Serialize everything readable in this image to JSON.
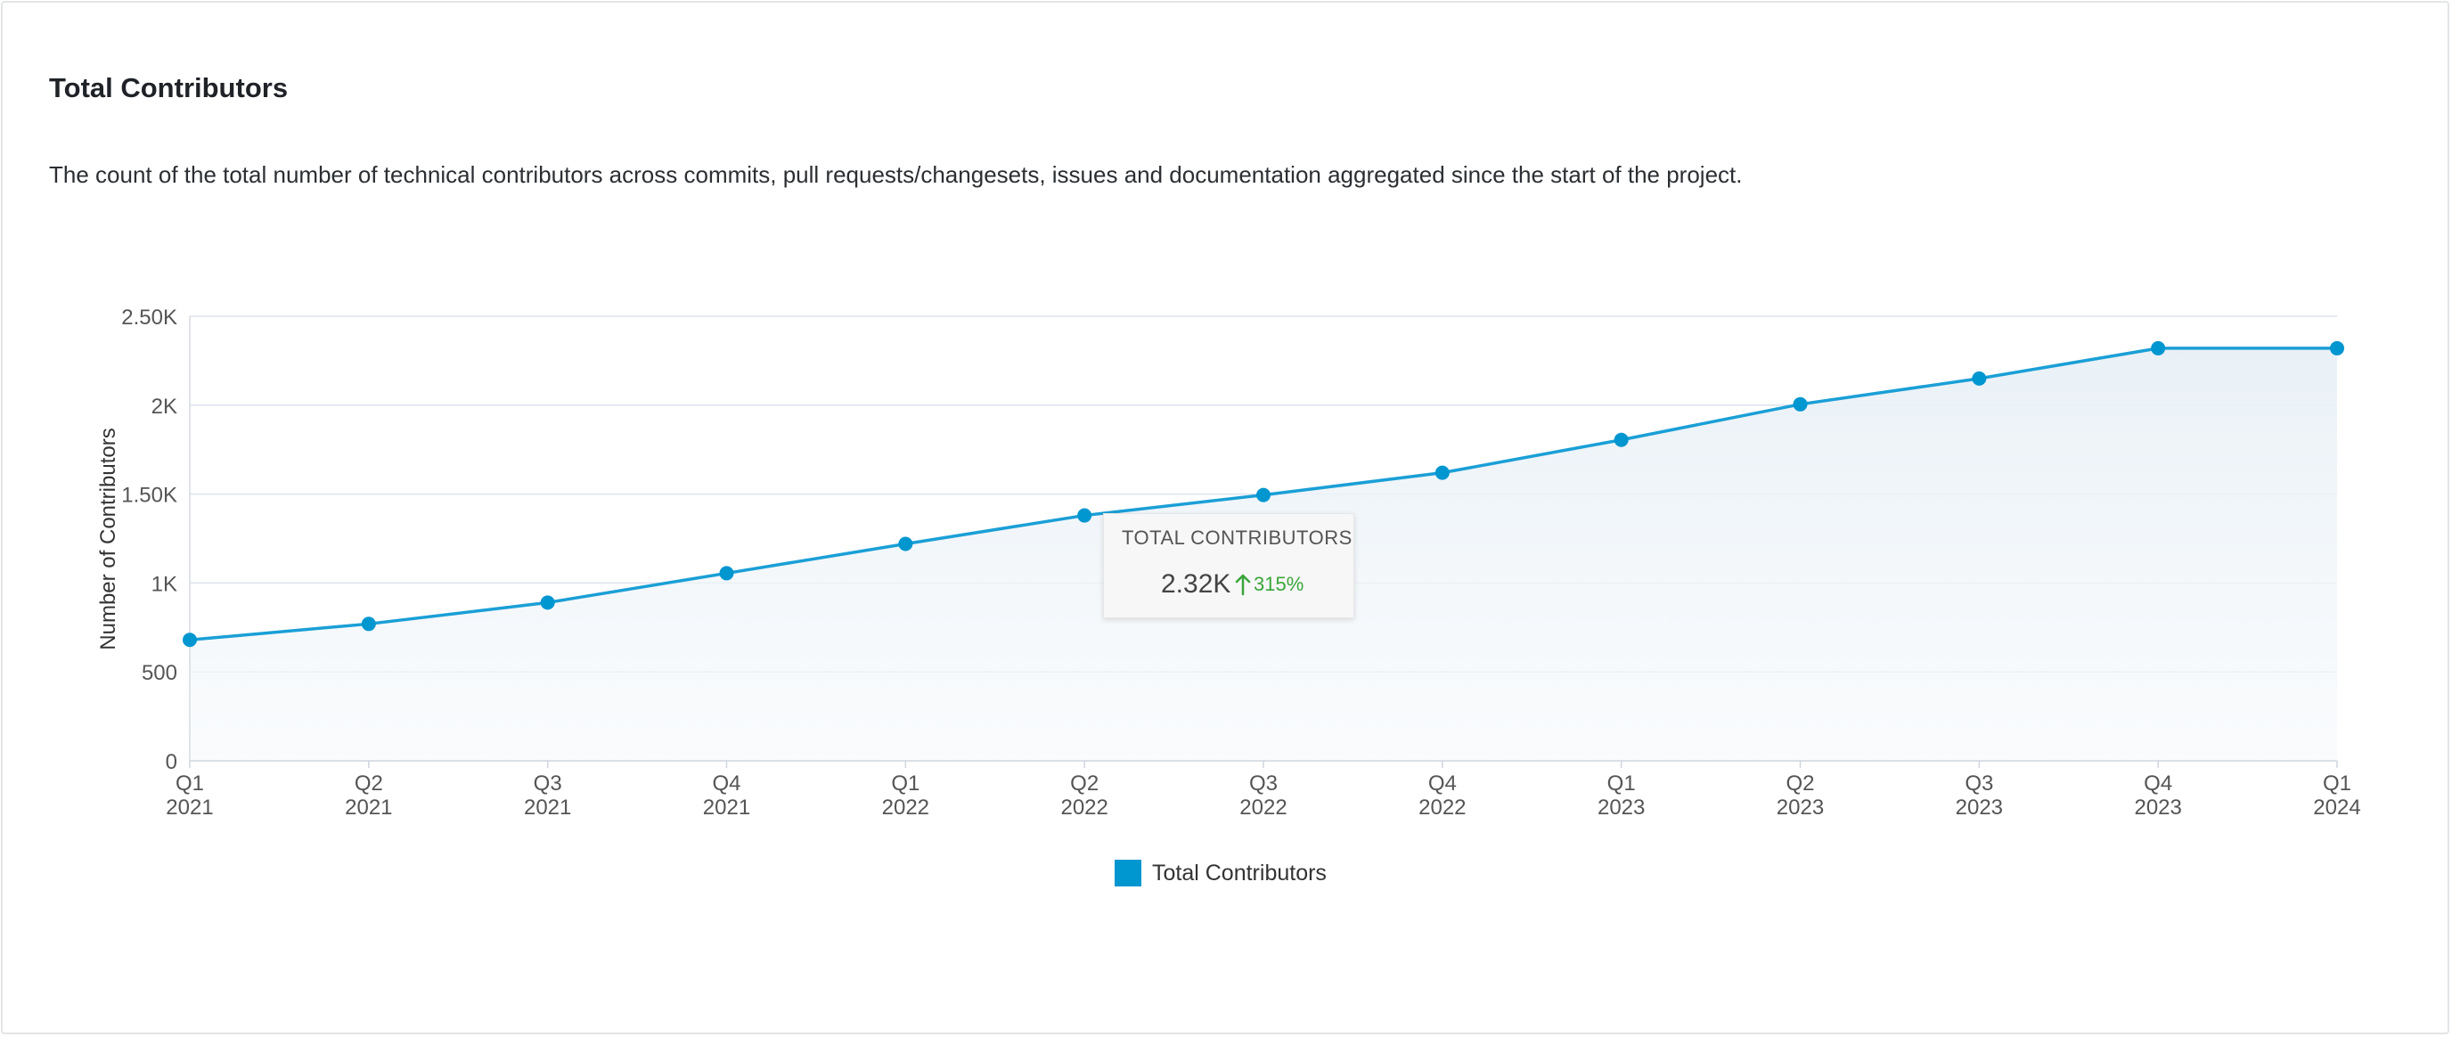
{
  "card": {
    "title": "Total Contributors",
    "description": "The count of the total number of technical contributors across commits, pull requests/changesets, issues and documentation aggregated since the start of the project."
  },
  "tooltip": {
    "label": "TOTAL CONTRIBUTORS",
    "value": "2.32K",
    "change": "315%",
    "change_icon": "arrow-up-icon"
  },
  "chart_data": {
    "type": "line",
    "area_fill": true,
    "ylabel": "Number of Contributors",
    "ylim": [
      0,
      2500
    ],
    "y_ticks": [
      0,
      500,
      1000,
      1500,
      2000,
      2500
    ],
    "y_tick_labels": [
      "0",
      "500",
      "1K",
      "1.50K",
      "2K",
      "2.50K"
    ],
    "categories": [
      [
        "Q1",
        "2021"
      ],
      [
        "Q2",
        "2021"
      ],
      [
        "Q3",
        "2021"
      ],
      [
        "Q4",
        "2021"
      ],
      [
        "Q1",
        "2022"
      ],
      [
        "Q2",
        "2022"
      ],
      [
        "Q3",
        "2022"
      ],
      [
        "Q4",
        "2022"
      ],
      [
        "Q1",
        "2023"
      ],
      [
        "Q2",
        "2023"
      ],
      [
        "Q3",
        "2023"
      ],
      [
        "Q4",
        "2023"
      ],
      [
        "Q1",
        "2024"
      ]
    ],
    "series": [
      {
        "name": "Total Contributors",
        "color": "#0096d0",
        "values": [
          680,
          770,
          890,
          1055,
          1220,
          1380,
          1495,
          1620,
          1805,
          2005,
          2150,
          2320,
          2320
        ]
      }
    ],
    "legend_position": "bottom-center",
    "grid": true
  },
  "colors": {
    "line": "#1a9fd6",
    "point": "#0096d0",
    "grid": "#dde3ee",
    "positive": "#3aa53a"
  }
}
